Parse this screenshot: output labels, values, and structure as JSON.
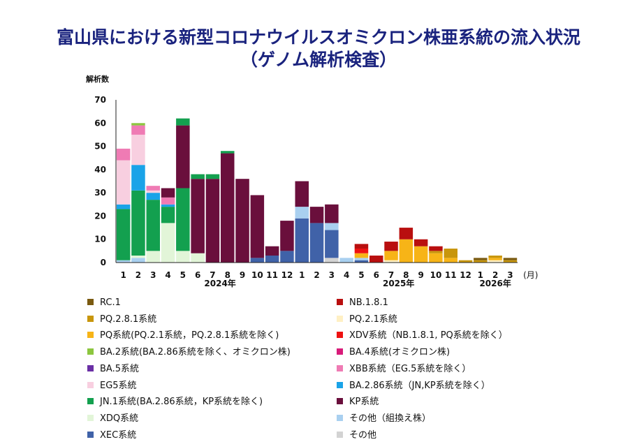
{
  "title": {
    "line1": "富山県における新型コロナウイルスオミクロン株亜系統の流入状況",
    "line2": "（ゲノム解析検査）"
  },
  "chart_data": {
    "type": "bar",
    "stacked": true,
    "ylabel": "解析数",
    "xlabel_unit": "(月)",
    "ylim": [
      0,
      70
    ],
    "yticks": [
      0,
      10,
      20,
      30,
      40,
      50,
      60,
      70
    ],
    "grid": false,
    "categories": [
      "1",
      "2",
      "3",
      "4",
      "5",
      "6",
      "7",
      "8",
      "9",
      "10",
      "11",
      "12",
      "1",
      "2",
      "3",
      "4",
      "5",
      "6",
      "7",
      "8",
      "9",
      "10",
      "11",
      "12",
      "1",
      "2",
      "3"
    ],
    "year_labels": [
      {
        "label": "2024年",
        "at_index": 6.5
      },
      {
        "label": "2025年",
        "at_index": 18.5
      },
      {
        "label": "2026年",
        "at_index": 25
      }
    ],
    "series": [
      {
        "name": "その他",
        "color": "#d3d3d3",
        "values": [
          0,
          0,
          0,
          0,
          0,
          0,
          0,
          0,
          0,
          0,
          0,
          0,
          0,
          0,
          2,
          0,
          0,
          0,
          0,
          0,
          0,
          0,
          0,
          0,
          0,
          0,
          0
        ]
      },
      {
        "name": "XEC系統",
        "color": "#4062a8",
        "values": [
          0,
          0,
          0,
          0,
          0,
          0,
          0,
          0,
          0,
          2,
          3,
          5,
          19,
          17,
          12,
          0,
          1,
          0,
          0,
          0,
          0,
          0,
          0,
          0,
          0,
          0,
          0
        ]
      },
      {
        "name": "その他（組換え株）",
        "color": "#a9d0f0",
        "values": [
          1,
          2,
          0,
          0,
          0,
          0,
          0,
          0,
          0,
          0,
          0,
          0,
          5,
          0,
          3,
          2,
          1,
          0,
          0,
          0,
          0,
          0,
          0,
          0,
          0,
          0,
          0
        ]
      },
      {
        "name": "XDQ系統",
        "color": "#e2f5d8",
        "values": [
          0,
          1,
          5,
          17,
          5,
          4,
          0,
          0,
          0,
          0,
          0,
          0,
          0,
          0,
          0,
          0,
          0,
          0,
          0,
          0,
          0,
          0,
          0,
          0,
          0,
          0,
          0
        ]
      },
      {
        "name": "JN.1系統(BA.2.86系統，KP系統を除く)",
        "color": "#13a04f",
        "values": [
          22,
          28,
          22,
          7,
          27,
          0,
          0,
          0,
          0,
          0,
          0,
          0,
          0,
          0,
          0,
          0,
          0,
          0,
          0,
          0,
          0,
          0,
          0,
          0,
          0,
          0,
          0
        ]
      },
      {
        "name": "BA.2.86系統（JN,KP系統を除く）",
        "color": "#1aa3e8",
        "values": [
          2,
          11,
          3,
          1,
          0,
          0,
          0,
          0,
          0,
          0,
          0,
          0,
          0,
          0,
          0,
          0,
          0,
          0,
          0,
          0,
          0,
          0,
          0,
          0,
          0,
          0,
          0
        ]
      },
      {
        "name": "EG5系統",
        "color": "#f8cfe0",
        "values": [
          19,
          13,
          1,
          0,
          0,
          0,
          0,
          0,
          0,
          0,
          0,
          0,
          0,
          0,
          0,
          0,
          0,
          0,
          0,
          0,
          0,
          0,
          0,
          0,
          0,
          0,
          0
        ]
      },
      {
        "name": "XBB系統（EG.5系統を除く）",
        "color": "#ef7bb4",
        "values": [
          5,
          4,
          2,
          3,
          0,
          0,
          0,
          0,
          0,
          0,
          0,
          0,
          0,
          0,
          0,
          0,
          0,
          0,
          0,
          0,
          0,
          0,
          0,
          0,
          0,
          0,
          0
        ]
      },
      {
        "name": "BA.2系統(BA.2.86系統を除く、オミクロン株)",
        "color": "#8cc63f",
        "values": [
          0,
          1,
          0,
          0,
          0,
          0,
          0,
          0,
          0,
          0,
          0,
          0,
          0,
          0,
          0,
          0,
          0,
          0,
          0,
          0,
          0,
          0,
          0,
          0,
          0,
          0,
          0
        ]
      },
      {
        "name": "KP系統",
        "color": "#6a0f3c",
        "values": [
          0,
          0,
          0,
          4,
          27,
          32,
          36,
          47,
          36,
          27,
          4,
          13,
          11,
          7,
          8,
          0,
          0,
          0,
          0,
          0,
          0,
          0,
          0,
          0,
          0,
          0,
          0
        ]
      },
      {
        "name": "JN.1系統(BA.2.86系統，KP系統を除く)",
        "legend": false,
        "color": "#13a04f",
        "values": [
          0,
          0,
          0,
          0,
          3,
          2,
          2,
          1,
          0,
          0,
          0,
          0,
          0,
          0,
          0,
          0,
          0,
          0,
          0,
          0,
          0,
          0,
          0,
          0,
          0,
          0,
          0
        ]
      },
      {
        "name": "PQ.2.1系統",
        "color": "#fff0c4",
        "values": [
          0,
          0,
          0,
          0,
          0,
          0,
          0,
          0,
          0,
          0,
          0,
          0,
          0,
          0,
          0,
          0,
          0,
          0,
          1,
          0,
          0,
          0,
          0,
          0,
          0,
          1,
          0
        ]
      },
      {
        "name": "PQ系統(PQ.2.1系統，PQ.2.8.1系統を除く)",
        "color": "#f7b417",
        "values": [
          0,
          0,
          0,
          0,
          0,
          0,
          0,
          0,
          0,
          0,
          0,
          0,
          0,
          0,
          0,
          0,
          2,
          0,
          4,
          10,
          7,
          4,
          2,
          0,
          0,
          1,
          0
        ]
      },
      {
        "name": "XDV系統（NB.1.8.1, PQ系統を除く）",
        "color": "#ee1111",
        "values": [
          0,
          0,
          0,
          0,
          0,
          0,
          0,
          0,
          0,
          0,
          0,
          0,
          0,
          0,
          0,
          0,
          2,
          0,
          0,
          0,
          0,
          0,
          0,
          0,
          0,
          0,
          0
        ]
      },
      {
        "name": "PQ.2.8.1系統",
        "color": "#c8960c",
        "values": [
          0,
          0,
          0,
          0,
          0,
          0,
          0,
          0,
          0,
          0,
          0,
          0,
          0,
          0,
          0,
          0,
          0,
          0,
          0,
          0,
          0,
          1,
          4,
          1,
          1,
          1,
          1
        ]
      },
      {
        "name": "NB.1.8.1",
        "color": "#b90f0f",
        "values": [
          0,
          0,
          0,
          0,
          0,
          0,
          0,
          0,
          0,
          0,
          0,
          0,
          0,
          0,
          0,
          0,
          2,
          3,
          4,
          5,
          3,
          2,
          0,
          0,
          0,
          0,
          0
        ]
      },
      {
        "name": "RC.1",
        "color": "#7a5a10",
        "values": [
          0,
          0,
          0,
          0,
          0,
          0,
          0,
          0,
          0,
          0,
          0,
          0,
          0,
          0,
          0,
          0,
          0,
          0,
          0,
          0,
          0,
          0,
          0,
          0,
          1,
          0,
          1
        ]
      },
      {
        "name": "BA.4系統(オミクロン株)",
        "color": "#d81b7a",
        "values": [
          0,
          0,
          0,
          0,
          0,
          0,
          0,
          0,
          0,
          0,
          0,
          0,
          0,
          0,
          0,
          0,
          0,
          0,
          0,
          0,
          0,
          0,
          0,
          0,
          0,
          0,
          0
        ]
      },
      {
        "name": "BA.5系統",
        "color": "#6a2fa5",
        "values": [
          0,
          0,
          0,
          0,
          0,
          0,
          0,
          0,
          0,
          0,
          0,
          0,
          0,
          0,
          0,
          0,
          0,
          0,
          0,
          0,
          0,
          0,
          0,
          0,
          0,
          0,
          0
        ]
      }
    ]
  },
  "legend": {
    "left": [
      {
        "label": "RC.1",
        "color": "#7a5a10"
      },
      {
        "label": "PQ.2.8.1系統",
        "color": "#c8960c"
      },
      {
        "label": "PQ系統(PQ.2.1系統，PQ.2.8.1系統を除く)",
        "color": "#f7b417"
      },
      {
        "label": "BA.2系統(BA.2.86系統を除く、オミクロン株)",
        "color": "#8cc63f"
      },
      {
        "label": "BA.5系統",
        "color": "#6a2fa5"
      },
      {
        "label": "EG5系統",
        "color": "#f8cfe0"
      },
      {
        "label": "JN.1系統(BA.2.86系統，KP系統を除く)",
        "color": "#13a04f"
      },
      {
        "label": "XDQ系統",
        "color": "#e2f5d8"
      },
      {
        "label": "XEC系統",
        "color": "#4062a8"
      }
    ],
    "right": [
      {
        "label": "NB.1.8.1",
        "color": "#b90f0f"
      },
      {
        "label": "PQ.2.1系統",
        "color": "#fff0c4"
      },
      {
        "label": "XDV系統（NB.1.8.1, PQ系統を除く）",
        "color": "#ee1111"
      },
      {
        "label": "BA.4系統(オミクロン株)",
        "color": "#d81b7a"
      },
      {
        "label": "XBB系統（EG.5系統を除く）",
        "color": "#ef7bb4"
      },
      {
        "label": "BA.2.86系統（JN,KP系統を除く）",
        "color": "#1aa3e8"
      },
      {
        "label": "KP系統",
        "color": "#6a0f3c"
      },
      {
        "label": "その他（組換え株）",
        "color": "#a9d0f0"
      },
      {
        "label": "その他",
        "color": "#d3d3d3"
      }
    ]
  }
}
